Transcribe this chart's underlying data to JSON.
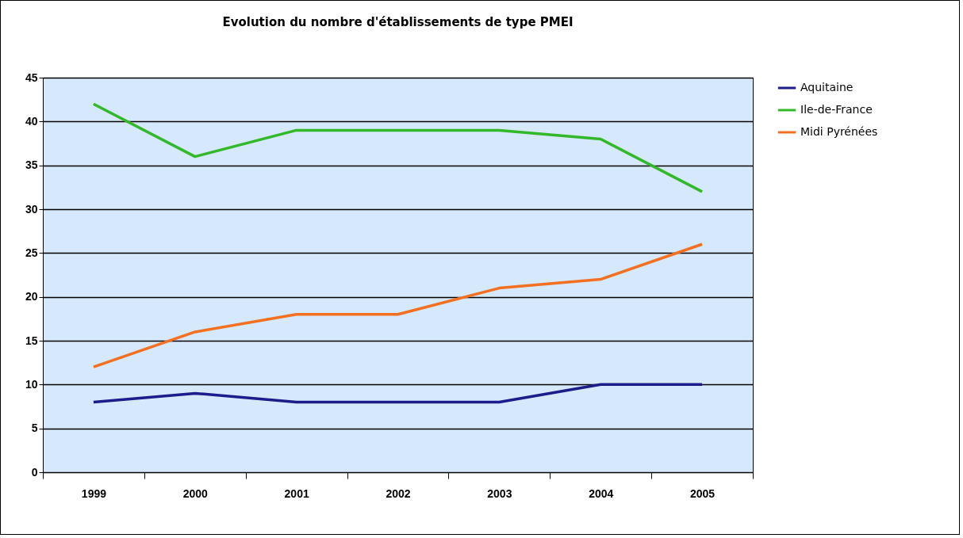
{
  "chart_data": {
    "type": "line",
    "title": "Evolution du nombre d'établissements de type PMEI",
    "categories": [
      "1999",
      "2000",
      "2001",
      "2002",
      "2003",
      "2004",
      "2005"
    ],
    "series": [
      {
        "name": "Aquitaine",
        "color": "#1c1c8c",
        "values": [
          8,
          9,
          8,
          8,
          8,
          10,
          10
        ]
      },
      {
        "name": "Ile-de-France",
        "color": "#33b82a",
        "values": [
          42,
          36,
          39,
          39,
          39,
          38,
          32
        ]
      },
      {
        "name": "Midi Pyrénées",
        "color": "#f37021",
        "values": [
          12,
          16,
          18,
          18,
          21,
          22,
          26
        ]
      }
    ],
    "ylim": [
      0,
      45
    ],
    "yticks": [
      0,
      5,
      10,
      15,
      20,
      25,
      30,
      35,
      40,
      45
    ],
    "grid": "y",
    "legend": "right",
    "marker": "none"
  }
}
